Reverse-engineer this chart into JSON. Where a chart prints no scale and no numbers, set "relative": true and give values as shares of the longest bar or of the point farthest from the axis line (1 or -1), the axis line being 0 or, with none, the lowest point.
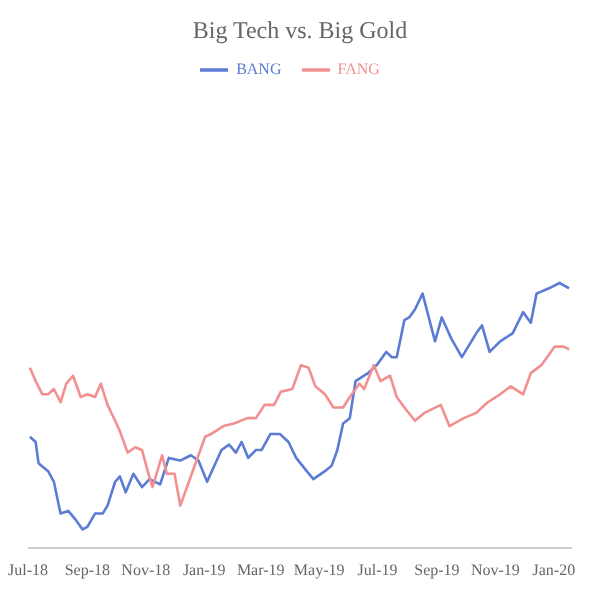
{
  "chart_data": {
    "type": "line",
    "title": "Big Tech vs. Big Gold",
    "relative": true,
    "legend": "top",
    "marker": "none",
    "line_style": "solid",
    "xlim": [
      "2018-07-01",
      "2020-01-20"
    ],
    "xticks": [
      {
        "value": "2018-07-01",
        "label": "Jul-18"
      },
      {
        "value": "2018-09-01",
        "label": "Sep-18"
      },
      {
        "value": "2018-11-01",
        "label": "Nov-18"
      },
      {
        "value": "2019-01-01",
        "label": "Jan-19"
      },
      {
        "value": "2019-03-01",
        "label": "Mar-19"
      },
      {
        "value": "2019-05-01",
        "label": "May-19"
      },
      {
        "value": "2019-07-01",
        "label": "Jul-19"
      },
      {
        "value": "2019-09-01",
        "label": "Sep-19"
      },
      {
        "value": "2019-11-01",
        "label": "Nov-19"
      },
      {
        "value": "2020-01-01",
        "label": "Jan-20"
      }
    ],
    "series": [
      {
        "name": "BANG",
        "color": "#5b7bd5",
        "x": [
          "2018-07-03",
          "2018-07-09",
          "2018-07-12",
          "2018-07-22",
          "2018-07-28",
          "2018-08-04",
          "2018-08-12",
          "2018-08-19",
          "2018-08-27",
          "2018-09-01",
          "2018-09-09",
          "2018-09-17",
          "2018-09-22",
          "2018-09-30",
          "2018-10-05",
          "2018-10-11",
          "2018-10-19",
          "2018-10-28",
          "2018-11-05",
          "2018-11-16",
          "2018-11-25",
          "2018-12-07",
          "2018-12-18",
          "2018-12-26",
          "2019-01-04",
          "2019-01-19",
          "2019-01-27",
          "2019-02-03",
          "2019-02-09",
          "2019-02-16",
          "2019-02-24",
          "2019-03-02",
          "2019-03-11",
          "2019-03-21",
          "2019-03-30",
          "2019-04-07",
          "2019-04-18",
          "2019-04-25",
          "2019-05-07",
          "2019-05-14",
          "2019-05-20",
          "2019-05-26",
          "2019-06-02",
          "2019-06-08",
          "2019-06-21",
          "2019-06-30",
          "2019-07-10",
          "2019-07-16",
          "2019-07-21",
          "2019-07-29",
          "2019-08-03",
          "2019-08-09",
          "2019-08-17",
          "2019-08-22",
          "2019-08-30",
          "2019-09-06",
          "2019-09-16",
          "2019-09-27",
          "2019-10-12",
          "2019-10-18",
          "2019-10-26",
          "2019-11-06",
          "2019-11-19",
          "2019-11-30",
          "2019-12-08",
          "2019-12-14",
          "2019-12-27",
          "2020-01-07",
          "2020-01-17"
        ],
        "values": [
          0.42,
          0.4,
          0.32,
          0.29,
          0.25,
          0.13,
          0.14,
          0.11,
          0.07,
          0.08,
          0.13,
          0.13,
          0.16,
          0.25,
          0.27,
          0.21,
          0.28,
          0.23,
          0.26,
          0.24,
          0.34,
          0.33,
          0.35,
          0.33,
          0.25,
          0.37,
          0.39,
          0.36,
          0.4,
          0.34,
          0.37,
          0.37,
          0.43,
          0.43,
          0.4,
          0.34,
          0.29,
          0.26,
          0.29,
          0.31,
          0.37,
          0.47,
          0.49,
          0.63,
          0.66,
          0.69,
          0.74,
          0.72,
          0.72,
          0.86,
          0.87,
          0.9,
          0.96,
          0.89,
          0.78,
          0.87,
          0.79,
          0.72,
          0.81,
          0.84,
          0.74,
          0.78,
          0.81,
          0.89,
          0.85,
          0.96,
          0.98,
          1.0,
          0.98
        ]
      },
      {
        "name": "FANG",
        "color": "#f29090",
        "x": [
          "2018-07-03",
          "2018-07-09",
          "2018-07-16",
          "2018-07-22",
          "2018-07-28",
          "2018-08-04",
          "2018-08-10",
          "2018-08-17",
          "2018-08-25",
          "2018-09-01",
          "2018-09-09",
          "2018-09-15",
          "2018-09-22",
          "2018-09-30",
          "2018-10-05",
          "2018-10-13",
          "2018-10-21",
          "2018-10-28",
          "2018-11-03",
          "2018-11-08",
          "2018-11-18",
          "2018-11-23",
          "2018-12-01",
          "2018-12-07",
          "2018-12-14",
          "2018-12-24",
          "2019-01-02",
          "2019-01-08",
          "2019-01-21",
          "2019-02-01",
          "2019-02-15",
          "2019-02-24",
          "2019-03-05",
          "2019-03-15",
          "2019-03-22",
          "2019-04-03",
          "2019-04-12",
          "2019-04-20",
          "2019-04-27",
          "2019-05-07",
          "2019-05-16",
          "2019-05-26",
          "2019-06-02",
          "2019-06-12",
          "2019-06-17",
          "2019-06-27",
          "2019-07-04",
          "2019-07-14",
          "2019-07-21",
          "2019-07-29",
          "2019-08-09",
          "2019-08-19",
          "2019-09-05",
          "2019-09-14",
          "2019-09-29",
          "2019-10-12",
          "2019-10-24",
          "2019-11-06",
          "2019-11-17",
          "2019-11-30",
          "2019-12-08",
          "2019-12-19",
          "2020-01-02",
          "2020-01-11",
          "2020-01-17"
        ],
        "values": [
          0.68,
          0.63,
          0.58,
          0.58,
          0.6,
          0.55,
          0.62,
          0.65,
          0.57,
          0.58,
          0.57,
          0.62,
          0.54,
          0.48,
          0.44,
          0.36,
          0.38,
          0.37,
          0.29,
          0.23,
          0.35,
          0.28,
          0.28,
          0.16,
          0.23,
          0.33,
          0.42,
          0.43,
          0.46,
          0.47,
          0.49,
          0.49,
          0.54,
          0.54,
          0.59,
          0.6,
          0.69,
          0.68,
          0.61,
          0.58,
          0.53,
          0.53,
          0.57,
          0.62,
          0.6,
          0.69,
          0.63,
          0.65,
          0.57,
          0.53,
          0.48,
          0.51,
          0.54,
          0.46,
          0.49,
          0.51,
          0.55,
          0.58,
          0.61,
          0.58,
          0.66,
          0.69,
          0.76,
          0.76,
          0.75
        ]
      }
    ]
  }
}
